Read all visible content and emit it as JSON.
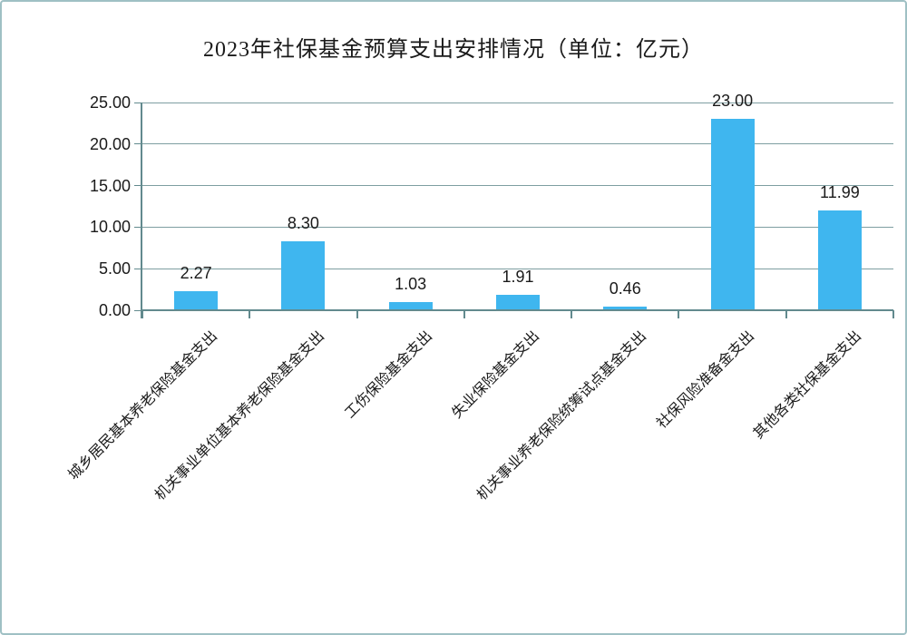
{
  "page": {
    "background": "#FFFFFF",
    "border_color": "#9FC0C4"
  },
  "chart_data": {
    "type": "bar",
    "title": "2023年社保基金预算支出安排情况（单位：亿元）",
    "categories": [
      "城乡居民基本养老保险基金支出",
      "机关事业单位基本养老保险基金支出",
      "工伤保险基金支出",
      "失业保险基金支出",
      "机关事业养老保险统筹试点基金支出",
      "社保风险准备金支出",
      "其他各类社保基金支出"
    ],
    "values": [
      2.27,
      8.3,
      1.03,
      1.91,
      0.46,
      23.0,
      11.99
    ],
    "value_labels": [
      "2.27",
      "8.30",
      "1.03",
      "1.91",
      "0.46",
      "23.00",
      "11.99"
    ],
    "xlabel": "",
    "ylabel": "",
    "ylim": [
      0,
      25
    ],
    "ytick_step": 5,
    "ytick_labels": [
      "0.00",
      "5.00",
      "10.00",
      "15.00",
      "20.00",
      "25.00"
    ],
    "grid": true,
    "legend_position": "none",
    "bar_color": "#3FB6EF",
    "grid_color": "#7E9EA1",
    "axis_color": "#628A8E",
    "text_color": "#1A1A1A"
  }
}
